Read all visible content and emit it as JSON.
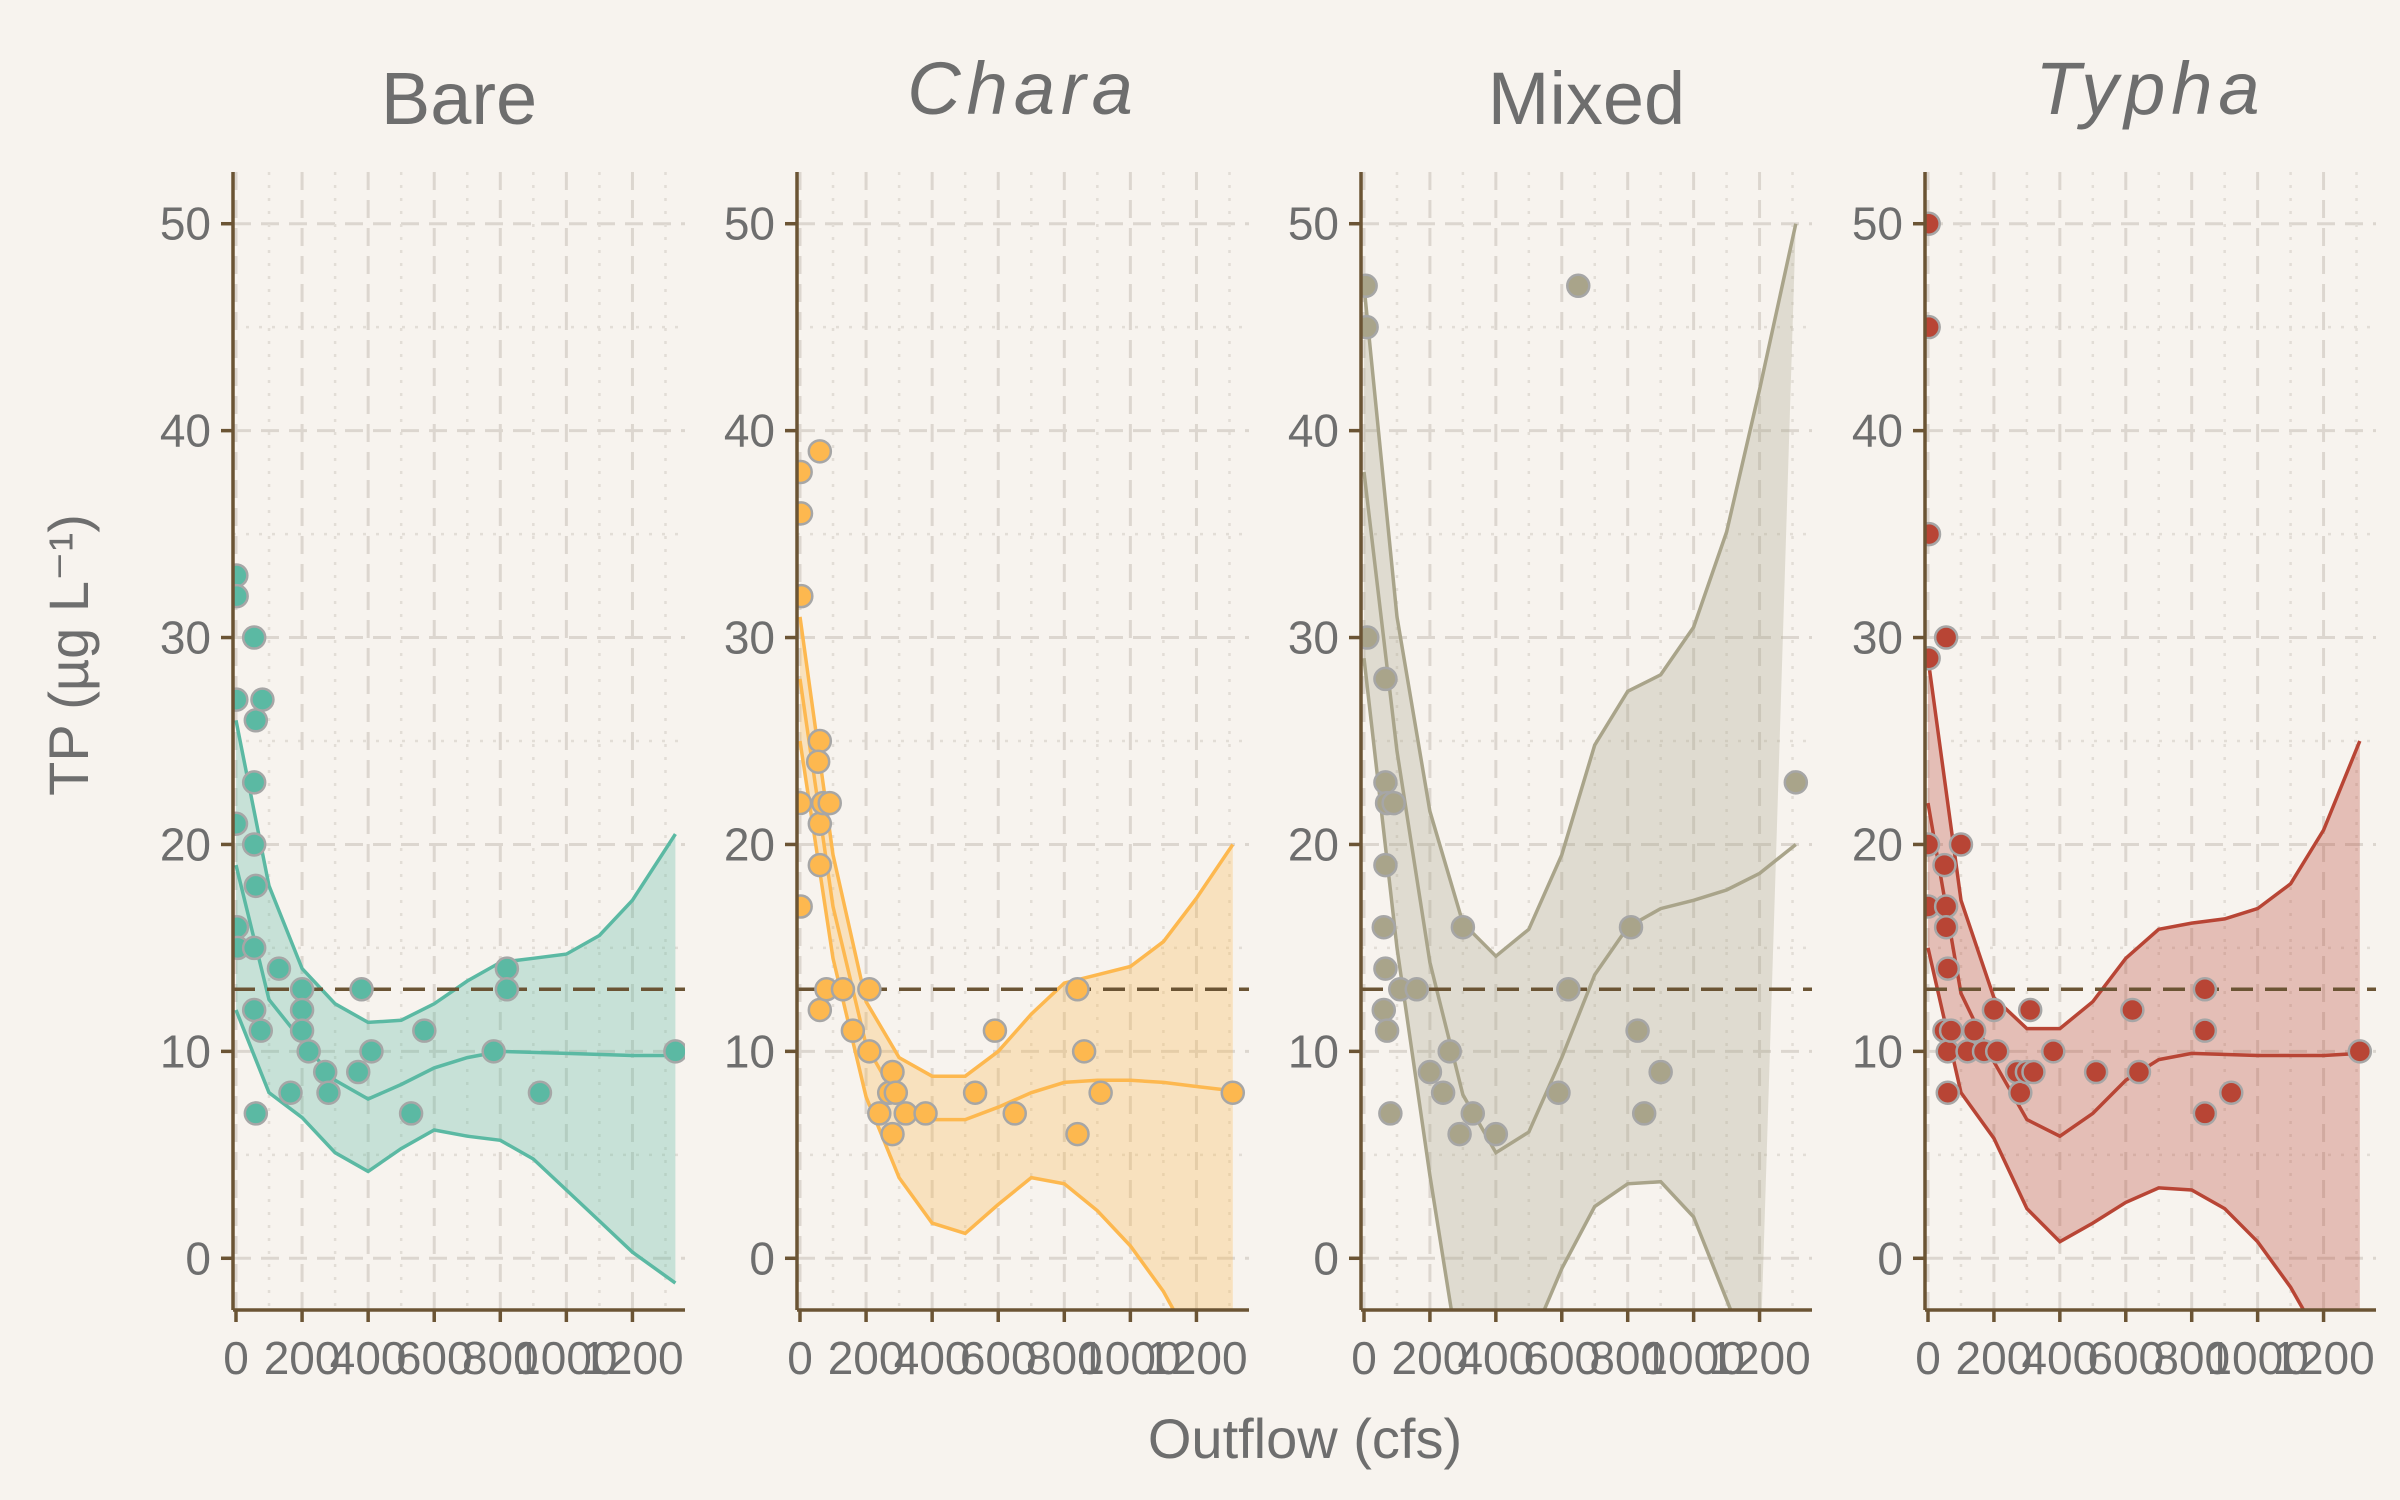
{
  "colors": {
    "background": "#f7f3ee",
    "axis": "#6b5434",
    "reference_line": "#6b5434",
    "text": "#6e6e6e",
    "point_outline": "#a6a6a6"
  },
  "chart_data": {
    "type": "scatter",
    "facet_layout": "1 row x 4 columns",
    "xlabel": "Outflow (cfs)",
    "ylabel": "TP (µg L⁻¹)",
    "xlim": [
      0,
      1350
    ],
    "ylim": [
      -2.5,
      52.5
    ],
    "x_ticks": [
      0,
      200,
      400,
      600,
      800,
      1000,
      1200
    ],
    "x_tick_labels": [
      "0",
      "200",
      "400",
      "600",
      "800",
      "1000",
      "1200"
    ],
    "y_ticks": [
      0,
      10,
      20,
      30,
      40,
      50
    ],
    "y_tick_labels": [
      "0",
      "10",
      "20",
      "30",
      "40",
      "50"
    ],
    "reference_line_y": 13,
    "grid": "dashed major and dotted minor gridlines",
    "overlay": "smooth fit with confidence band",
    "facets": [
      {
        "title": "Bare",
        "italic": false,
        "color": "#5bb9a3",
        "points": [
          [
            1,
            33
          ],
          [
            2,
            32
          ],
          [
            1,
            27
          ],
          [
            0,
            21
          ],
          [
            3,
            16
          ],
          [
            5,
            15
          ],
          [
            55,
            30
          ],
          [
            60,
            26
          ],
          [
            55,
            23
          ],
          [
            80,
            27
          ],
          [
            55,
            20
          ],
          [
            60,
            18
          ],
          [
            55,
            15
          ],
          [
            55,
            12
          ],
          [
            75,
            11
          ],
          [
            130,
            14
          ],
          [
            60,
            7
          ],
          [
            165,
            8
          ],
          [
            200,
            13
          ],
          [
            200,
            12
          ],
          [
            200,
            11
          ],
          [
            220,
            10
          ],
          [
            270,
            9
          ],
          [
            280,
            8
          ],
          [
            370,
            9
          ],
          [
            380,
            13
          ],
          [
            410,
            10
          ],
          [
            530,
            7
          ],
          [
            570,
            11
          ],
          [
            780,
            10
          ],
          [
            820,
            14
          ],
          [
            820,
            13
          ],
          [
            920,
            8
          ],
          [
            1330,
            10
          ]
        ],
        "fit": [
          [
            0,
            19
          ],
          [
            100,
            12.5
          ],
          [
            200,
            10.5
          ],
          [
            300,
            8.6
          ],
          [
            400,
            7.7
          ],
          [
            500,
            8.4
          ],
          [
            600,
            9.2
          ],
          [
            700,
            9.7
          ],
          [
            800,
            10
          ],
          [
            1000,
            9.9
          ],
          [
            1200,
            9.8
          ],
          [
            1330,
            9.8
          ]
        ],
        "band_upper": [
          [
            0,
            26
          ],
          [
            100,
            18
          ],
          [
            200,
            14
          ],
          [
            300,
            12.3
          ],
          [
            400,
            11.4
          ],
          [
            500,
            11.5
          ],
          [
            600,
            12.3
          ],
          [
            700,
            13.4
          ],
          [
            800,
            14.3
          ],
          [
            900,
            14.5
          ],
          [
            1000,
            14.7
          ],
          [
            1100,
            15.6
          ],
          [
            1200,
            17.3
          ],
          [
            1330,
            20.5
          ]
        ],
        "band_lower": [
          [
            0,
            12
          ],
          [
            100,
            8
          ],
          [
            200,
            6.8
          ],
          [
            300,
            5.1
          ],
          [
            400,
            4.2
          ],
          [
            500,
            5.3
          ],
          [
            600,
            6.2
          ],
          [
            700,
            5.9
          ],
          [
            800,
            5.7
          ],
          [
            900,
            4.8
          ],
          [
            1000,
            3.3
          ],
          [
            1100,
            1.8
          ],
          [
            1200,
            0.3
          ],
          [
            1330,
            -1.2
          ]
        ]
      },
      {
        "title": "Chara",
        "italic": true,
        "color": "#fdb84f",
        "points": [
          [
            2,
            38
          ],
          [
            3,
            36
          ],
          [
            4,
            32
          ],
          [
            0,
            22
          ],
          [
            2,
            17
          ],
          [
            60,
            39
          ],
          [
            60,
            25
          ],
          [
            55,
            24
          ],
          [
            60,
            21
          ],
          [
            60,
            19
          ],
          [
            60,
            12
          ],
          [
            70,
            22
          ],
          [
            90,
            22
          ],
          [
            80,
            13
          ],
          [
            130,
            13
          ],
          [
            160,
            11
          ],
          [
            210,
            13
          ],
          [
            210,
            10
          ],
          [
            240,
            7
          ],
          [
            270,
            8
          ],
          [
            280,
            9
          ],
          [
            290,
            8
          ],
          [
            280,
            6
          ],
          [
            320,
            7
          ],
          [
            380,
            7
          ],
          [
            530,
            8
          ],
          [
            590,
            11
          ],
          [
            650,
            7
          ],
          [
            840,
            13
          ],
          [
            840,
            6
          ],
          [
            860,
            10
          ],
          [
            910,
            8
          ],
          [
            1310,
            8
          ]
        ],
        "fit": [
          [
            0,
            28
          ],
          [
            100,
            17
          ],
          [
            200,
            10.3
          ],
          [
            300,
            7.5
          ],
          [
            400,
            6.7
          ],
          [
            500,
            6.7
          ],
          [
            600,
            7.3
          ],
          [
            700,
            8
          ],
          [
            800,
            8.5
          ],
          [
            900,
            8.6
          ],
          [
            1000,
            8.6
          ],
          [
            1100,
            8.5
          ],
          [
            1200,
            8.3
          ],
          [
            1310,
            8.1
          ]
        ],
        "band_upper": [
          [
            0,
            31
          ],
          [
            100,
            19.5
          ],
          [
            200,
            12.4
          ],
          [
            300,
            9.7
          ],
          [
            400,
            8.8
          ],
          [
            500,
            8.8
          ],
          [
            600,
            10
          ],
          [
            700,
            11.8
          ],
          [
            800,
            13.3
          ],
          [
            900,
            13.7
          ],
          [
            1000,
            14.1
          ],
          [
            1100,
            15.3
          ],
          [
            1200,
            17.4
          ],
          [
            1310,
            20
          ]
        ],
        "band_lower": [
          [
            0,
            25
          ],
          [
            100,
            14.5
          ],
          [
            200,
            7.8
          ],
          [
            300,
            3.9
          ],
          [
            400,
            1.7
          ],
          [
            500,
            1.2
          ],
          [
            600,
            2.6
          ],
          [
            700,
            3.9
          ],
          [
            800,
            3.6
          ],
          [
            900,
            2.3
          ],
          [
            1000,
            0.6
          ],
          [
            1100,
            -1.6
          ],
          [
            1200,
            -4.5
          ],
          [
            1310,
            -7.5
          ]
        ]
      },
      {
        "title": "Mixed",
        "italic": false,
        "color": "#a9a48a",
        "points": [
          [
            5,
            47
          ],
          [
            8,
            45
          ],
          [
            10,
            30
          ],
          [
            65,
            28
          ],
          [
            65,
            23
          ],
          [
            70,
            22
          ],
          [
            90,
            22
          ],
          [
            65,
            19
          ],
          [
            60,
            16
          ],
          [
            65,
            14
          ],
          [
            60,
            12
          ],
          [
            70,
            11
          ],
          [
            80,
            7
          ],
          [
            110,
            13
          ],
          [
            160,
            13
          ],
          [
            200,
            9
          ],
          [
            240,
            8
          ],
          [
            260,
            10
          ],
          [
            290,
            6
          ],
          [
            300,
            16
          ],
          [
            330,
            7
          ],
          [
            400,
            6
          ],
          [
            590,
            8
          ],
          [
            620,
            13
          ],
          [
            650,
            47
          ],
          [
            810,
            16
          ],
          [
            830,
            11
          ],
          [
            850,
            7
          ],
          [
            900,
            9
          ],
          [
            1310,
            23
          ]
        ],
        "fit": [
          [
            0,
            38
          ],
          [
            100,
            24.5
          ],
          [
            200,
            14.3
          ],
          [
            300,
            7.9
          ],
          [
            400,
            5.1
          ],
          [
            500,
            6.1
          ],
          [
            600,
            9.7
          ],
          [
            700,
            13.7
          ],
          [
            800,
            16
          ],
          [
            900,
            16.9
          ],
          [
            1000,
            17.3
          ],
          [
            1100,
            17.8
          ],
          [
            1200,
            18.6
          ],
          [
            1310,
            20
          ]
        ],
        "band_upper": [
          [
            0,
            47
          ],
          [
            100,
            31
          ],
          [
            200,
            21.6
          ],
          [
            300,
            16.2
          ],
          [
            400,
            14.6
          ],
          [
            500,
            15.9
          ],
          [
            600,
            19.5
          ],
          [
            700,
            24.8
          ],
          [
            800,
            27.4
          ],
          [
            900,
            28.2
          ],
          [
            1000,
            30.5
          ],
          [
            1100,
            35.1
          ],
          [
            1200,
            42
          ],
          [
            1310,
            50
          ]
        ],
        "band_lower": [
          [
            0,
            29
          ],
          [
            100,
            15
          ],
          [
            200,
            4
          ],
          [
            300,
            -6
          ],
          [
            400,
            -8
          ],
          [
            600,
            -0.5
          ],
          [
            700,
            2.5
          ],
          [
            800,
            3.6
          ],
          [
            900,
            3.7
          ],
          [
            1000,
            2
          ],
          [
            1100,
            -2
          ],
          [
            1200,
            -6
          ]
        ]
      },
      {
        "title": "Typha",
        "italic": true,
        "color": "#b84535",
        "points": [
          [
            2,
            50
          ],
          [
            2,
            45
          ],
          [
            3,
            35
          ],
          [
            2,
            29
          ],
          [
            0,
            20
          ],
          [
            0,
            17
          ],
          [
            55,
            30
          ],
          [
            50,
            19
          ],
          [
            55,
            17
          ],
          [
            55,
            16
          ],
          [
            60,
            14
          ],
          [
            50,
            11
          ],
          [
            60,
            10
          ],
          [
            60,
            8
          ],
          [
            70,
            11
          ],
          [
            100,
            20
          ],
          [
            120,
            10
          ],
          [
            140,
            11
          ],
          [
            170,
            10
          ],
          [
            200,
            12
          ],
          [
            210,
            10
          ],
          [
            270,
            9
          ],
          [
            280,
            8
          ],
          [
            300,
            9
          ],
          [
            310,
            12
          ],
          [
            320,
            9
          ],
          [
            380,
            10
          ],
          [
            510,
            9
          ],
          [
            620,
            12
          ],
          [
            640,
            9
          ],
          [
            840,
            13
          ],
          [
            840,
            11
          ],
          [
            840,
            7
          ],
          [
            920,
            8
          ],
          [
            1310,
            10
          ]
        ],
        "fit": [
          [
            0,
            22
          ],
          [
            100,
            12.8
          ],
          [
            200,
            9.5
          ],
          [
            300,
            6.7
          ],
          [
            400,
            5.9
          ],
          [
            500,
            7
          ],
          [
            600,
            8.6
          ],
          [
            700,
            9.6
          ],
          [
            800,
            9.9
          ],
          [
            1000,
            9.8
          ],
          [
            1200,
            9.8
          ],
          [
            1310,
            9.9
          ]
        ],
        "band_upper": [
          [
            0,
            29
          ],
          [
            100,
            17.3
          ],
          [
            200,
            12.6
          ],
          [
            300,
            11.1
          ],
          [
            400,
            11.1
          ],
          [
            500,
            12.4
          ],
          [
            600,
            14.5
          ],
          [
            700,
            15.9
          ],
          [
            800,
            16.2
          ],
          [
            900,
            16.4
          ],
          [
            1000,
            16.9
          ],
          [
            1100,
            18.1
          ],
          [
            1200,
            20.7
          ],
          [
            1310,
            25
          ]
        ],
        "band_lower": [
          [
            0,
            15
          ],
          [
            100,
            8
          ],
          [
            200,
            5.8
          ],
          [
            300,
            2.4
          ],
          [
            400,
            0.8
          ],
          [
            500,
            1.7
          ],
          [
            600,
            2.7
          ],
          [
            700,
            3.4
          ],
          [
            800,
            3.3
          ],
          [
            900,
            2.4
          ],
          [
            1000,
            0.8
          ],
          [
            1100,
            -1.4
          ],
          [
            1200,
            -4.2
          ],
          [
            1310,
            -7.8
          ]
        ]
      }
    ]
  }
}
